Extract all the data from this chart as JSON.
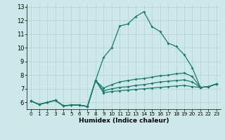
{
  "xlabel": "Humidex (Indice chaleur)",
  "background_color": "#cde8e8",
  "line_color": "#1a7a6e",
  "grid_color": "#b8d4d4",
  "xlim": [
    -0.5,
    23.5
  ],
  "ylim": [
    5.5,
    13.2
  ],
  "yticks": [
    6,
    7,
    8,
    9,
    10,
    11,
    12,
    13
  ],
  "xticks": [
    0,
    1,
    2,
    3,
    4,
    5,
    6,
    7,
    8,
    9,
    10,
    11,
    12,
    13,
    14,
    15,
    16,
    17,
    18,
    19,
    20,
    21,
    22,
    23
  ],
  "series": [
    [
      6.1,
      5.85,
      6.0,
      6.15,
      5.75,
      5.8,
      5.8,
      5.7,
      7.6,
      9.3,
      10.0,
      11.6,
      11.75,
      12.3,
      12.65,
      11.55,
      11.2,
      10.35,
      10.1,
      9.5,
      8.55,
      7.1,
      7.15,
      7.35
    ],
    [
      6.1,
      5.85,
      6.0,
      6.15,
      5.75,
      5.8,
      5.8,
      5.7,
      7.6,
      7.05,
      7.3,
      7.5,
      7.6,
      7.7,
      7.75,
      7.85,
      7.95,
      8.0,
      8.1,
      8.15,
      7.9,
      7.1,
      7.15,
      7.35
    ],
    [
      6.1,
      5.85,
      6.0,
      6.15,
      5.75,
      5.8,
      5.8,
      5.7,
      7.6,
      6.85,
      7.0,
      7.1,
      7.15,
      7.25,
      7.3,
      7.4,
      7.5,
      7.55,
      7.6,
      7.65,
      7.5,
      7.1,
      7.15,
      7.35
    ],
    [
      6.1,
      5.85,
      6.0,
      6.15,
      5.75,
      5.8,
      5.8,
      5.7,
      7.6,
      6.7,
      6.8,
      6.85,
      6.9,
      6.95,
      7.0,
      7.05,
      7.1,
      7.15,
      7.2,
      7.25,
      7.15,
      7.1,
      7.15,
      7.35
    ]
  ]
}
